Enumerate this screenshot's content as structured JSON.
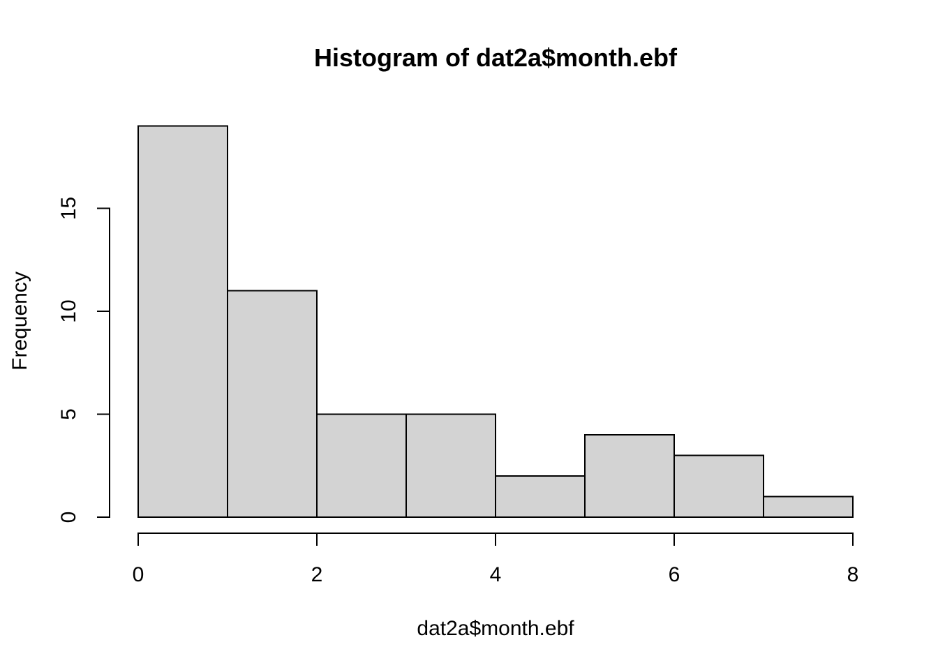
{
  "figure": {
    "background": "#ffffff"
  },
  "chart_data": {
    "type": "bar",
    "subtype": "histogram",
    "title": "Histogram of dat2a$month.ebf",
    "xlabel": "dat2a$month.ebf",
    "ylabel": "Frequency",
    "bin_edges": [
      0,
      1,
      2,
      3,
      4,
      5,
      6,
      7,
      8
    ],
    "counts": [
      19,
      11,
      5,
      5,
      2,
      4,
      3,
      1
    ],
    "x_ticks": [
      0,
      2,
      4,
      6,
      8
    ],
    "y_ticks": [
      0,
      5,
      10,
      15
    ],
    "xlim": [
      0,
      8
    ],
    "ylim": [
      0,
      19
    ],
    "grid": false,
    "legend": false,
    "bar_fill": "#d3d3d3",
    "bar_stroke": "#000000",
    "axis_color": "#000000",
    "text_color": "#000000"
  }
}
